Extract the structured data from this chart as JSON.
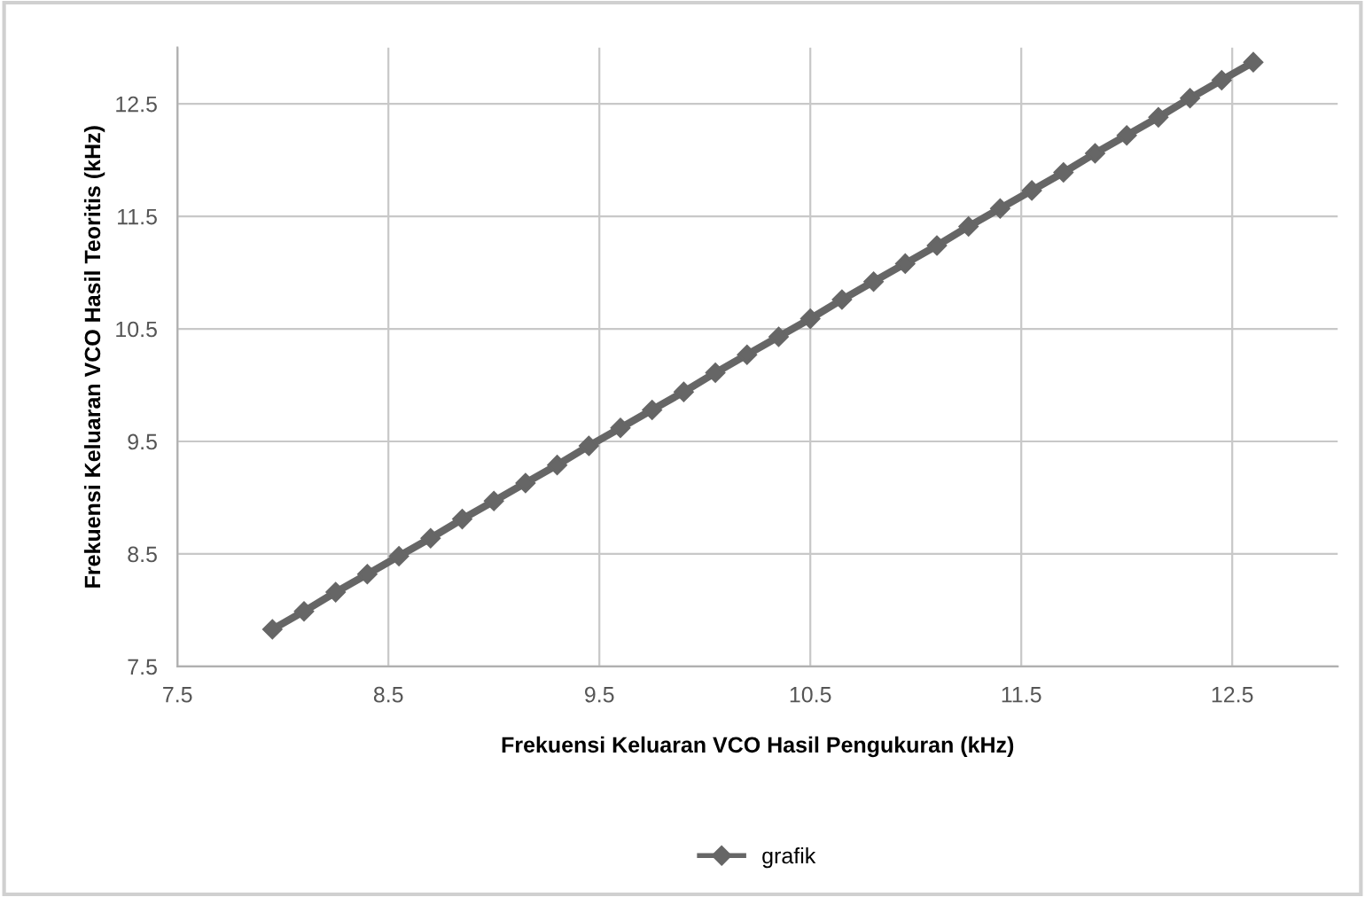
{
  "chart_data": {
    "type": "line",
    "xlabel": "Frekuensi Keluaran VCO Hasil Pengukuran (kHz)",
    "ylabel": "Frekuensi Keluaran VCO Hasil Teoritis (kHz)",
    "x": [
      7.95,
      8.1,
      8.25,
      8.4,
      8.55,
      8.7,
      8.85,
      9.0,
      9.15,
      9.3,
      9.45,
      9.6,
      9.75,
      9.9,
      10.05,
      10.2,
      10.35,
      10.5,
      10.65,
      10.8,
      10.95,
      11.1,
      11.25,
      11.4,
      11.55,
      11.7,
      11.85,
      12.0,
      12.15,
      12.3,
      12.45,
      12.6
    ],
    "series": [
      {
        "name": "grafik",
        "color": "#666666",
        "values": [
          7.83,
          7.99,
          8.16,
          8.32,
          8.48,
          8.64,
          8.81,
          8.97,
          9.13,
          9.29,
          9.46,
          9.62,
          9.78,
          9.94,
          10.11,
          10.27,
          10.43,
          10.59,
          10.76,
          10.92,
          11.08,
          11.24,
          11.41,
          11.57,
          11.73,
          11.89,
          12.06,
          12.22,
          12.38,
          12.55,
          12.71,
          12.87
        ]
      }
    ],
    "xlim": [
      7.5,
      13.0
    ],
    "ylim": [
      7.5,
      13.0
    ],
    "xticks": [
      7.5,
      8.5,
      9.5,
      10.5,
      11.5,
      12.5
    ],
    "yticks": [
      7.5,
      8.5,
      9.5,
      10.5,
      11.5,
      12.5
    ],
    "grid": true,
    "legend": "bottom",
    "marker": "diamond",
    "line_style": "solid"
  }
}
